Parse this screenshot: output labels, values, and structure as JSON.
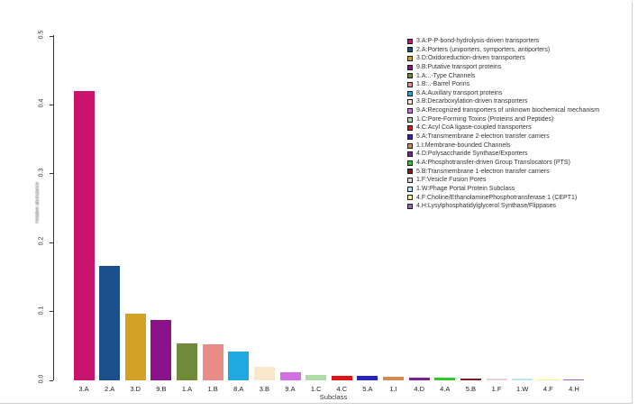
{
  "figure": {
    "background": "#ffffff",
    "frame_color": "#cfcfcf",
    "axis_color": "#333333"
  },
  "chart_data": {
    "type": "bar",
    "title": "",
    "xlabel": "Subclass",
    "ylabel": "Relative abundance",
    "ylim": [
      0,
      0.5
    ],
    "yticks": [
      "0.0",
      "0.1",
      "0.2",
      "0.3",
      "0.4",
      "0.5"
    ],
    "grid": false,
    "legend_position": "top-right",
    "categories": [
      "3.A",
      "2.A",
      "3.D",
      "9.B",
      "1.A",
      "1.B",
      "8.A",
      "3.B",
      "9.A",
      "1.C",
      "4.C",
      "5.A",
      "1.I",
      "4.D",
      "4.A",
      "5.B",
      "1.F",
      "1.W",
      "4.F",
      "4.H"
    ],
    "values": [
      0.42,
      0.166,
      0.097,
      0.088,
      0.054,
      0.052,
      0.042,
      0.02,
      0.012,
      0.0085,
      0.007,
      0.006,
      0.005,
      0.0045,
      0.0035,
      0.003,
      0.0022,
      0.002,
      0.0018,
      0.0015
    ],
    "colors": [
      "#c9146e",
      "#1b508d",
      "#d2a126",
      "#8a1389",
      "#6f8b3a",
      "#e98b87",
      "#1fa9e0",
      "#fae8cc",
      "#d36fe3",
      "#afdca5",
      "#df1216",
      "#2824c4",
      "#d28a50",
      "#7d1f96",
      "#2ec82e",
      "#7c1a20",
      "#ebd3d5",
      "#bce9ec",
      "#f3f383",
      "#9a67c0"
    ],
    "legend_labels": [
      "3.A:P-P-bond-hydrolysis-driven transporters",
      "2.A:Porters (uniporters, symporters, antiporters)",
      "3.D:Oxidoreduction-driven transporters",
      "9.B:Putative transport proteins",
      "1.A:..-Type Channels",
      "1.B:..-Barrel Porins",
      "8.A:Auxiliary transport proteins",
      "3.B:Decarboxylation-driven transporters",
      "9.A:Recognized transporters of unknown biochemical mechanism",
      "1.C:Pore-Forming Toxins (Proteins and Peptides)",
      "4.C:Acyl CoA ligase-coupled transporters",
      "5.A:Transmembrane 2-electron transfer carriers",
      "1.I:Membrane-bounded Channels",
      "4.D:Polysaccharide Synthase/Exporters",
      "4.A:Phosphotransfer-driven Group Translocators (PTS)",
      "5.B:Transmembrane 1-electron transfer carriers",
      "1.F:Vesicle Fusion Pores",
      "1.W:Phage Portal Protein Subclass",
      "4.F:Choline/EthanolaminePhosphotransferase 1 (CEPT1)",
      "4.H:Lysylphosphatidylglycerol Synthase/Flippases"
    ]
  }
}
